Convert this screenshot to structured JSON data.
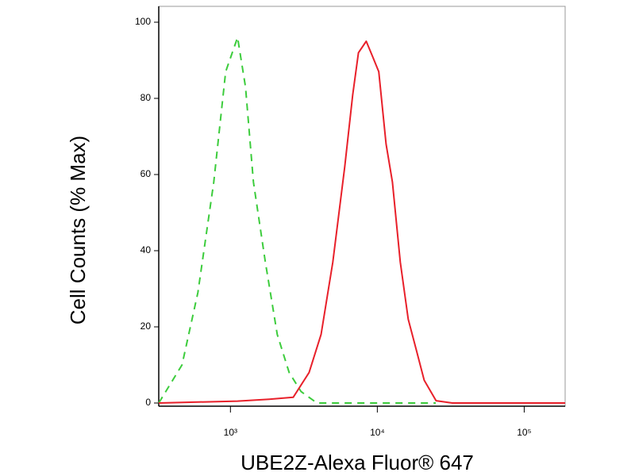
{
  "chart_data": {
    "type": "line",
    "log_x": true,
    "xlabel": "UBE2Z-Alexa Fluor® 647",
    "ylabel": "Cell Counts (% Max)",
    "xlim": [
      325,
      190000
    ],
    "ylim": [
      0,
      100
    ],
    "xticks": [
      {
        "value": 1000,
        "label": "10³"
      },
      {
        "value": 10000,
        "label": "10⁴"
      },
      {
        "value": 100000,
        "label": "10⁵"
      }
    ],
    "yticks": [
      0,
      20,
      40,
      60,
      80,
      100
    ],
    "series": [
      {
        "color": "#3ccc3c",
        "dashed": true,
        "x": [
          325,
          468,
          600,
          770,
          928,
          1118,
          1267,
          1435,
          1729,
          2084,
          2511,
          3026,
          3887,
          25000
        ],
        "values": [
          0,
          10,
          29,
          58,
          87,
          96,
          83,
          58,
          37,
          18,
          8,
          3,
          0,
          0
        ]
      },
      {
        "color": "#e8202a",
        "dashed": false,
        "x": [
          325,
          1118,
          1840,
          2674,
          3429,
          4139,
          4980,
          6000,
          6806,
          7438,
          8400,
          9280,
          10230,
          11470,
          12670,
          14340,
          16240,
          18400,
          20840,
          25120,
          32440,
          190000
        ],
        "values": [
          0,
          0.5,
          1,
          1.5,
          8,
          18,
          37,
          62,
          81,
          92,
          95,
          91,
          87,
          68,
          58,
          37,
          22,
          14,
          6,
          0.6,
          0,
          0
        ]
      }
    ]
  }
}
